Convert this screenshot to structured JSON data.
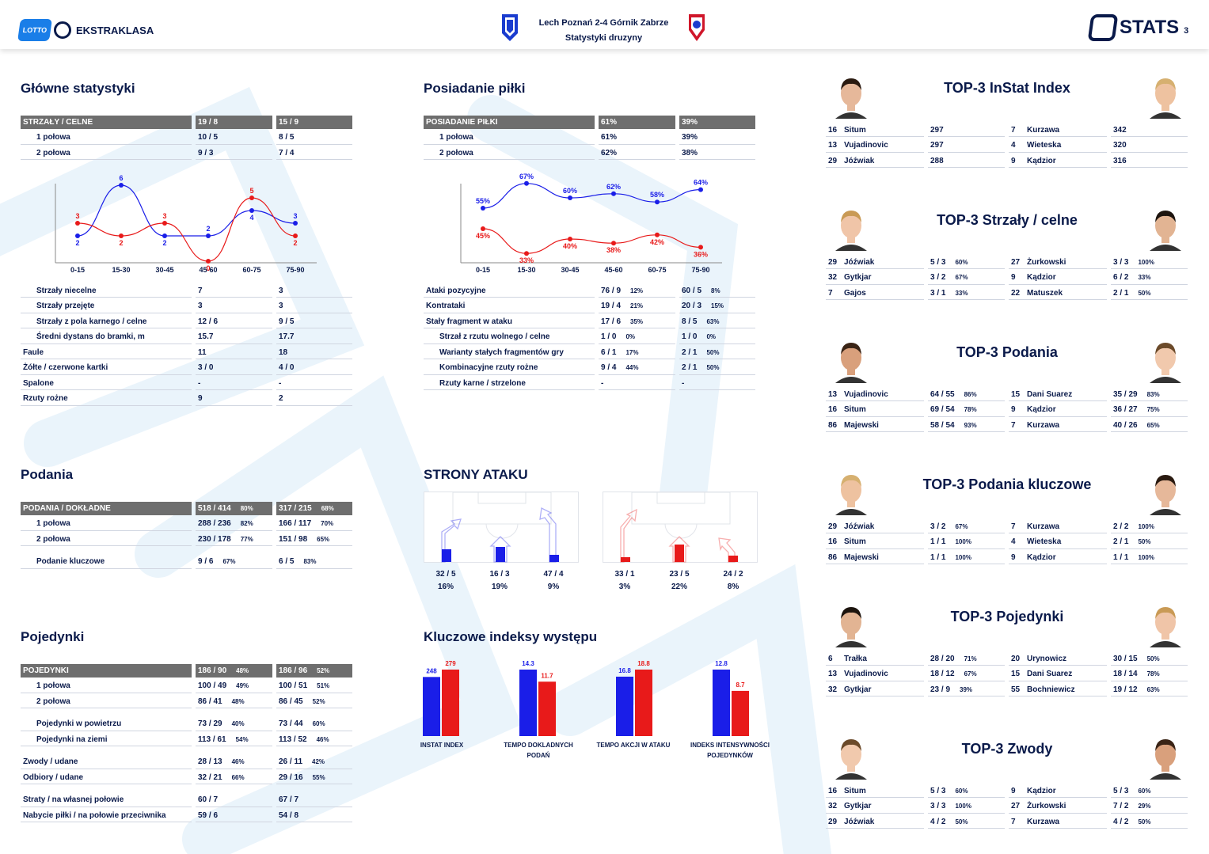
{
  "header": {
    "brand_league": "EKSTRAKLASA",
    "brand_lotto": "LOTTO",
    "match_line1": "Lech Poznań 2-4 Górnik Zabrze",
    "match_line2": "Statystyki druzyny",
    "stats_brand": "STATS",
    "page_no": "3"
  },
  "colors": {
    "home": "#1a1ee8",
    "away": "#e81a1a",
    "header_grey": "#6e6e6e",
    "navy": "#0a1a4a"
  },
  "main": {
    "title": "Główne statystyki",
    "header": [
      "STRZAŁY / CELNE",
      "19 / 8",
      "15 / 9"
    ],
    "halves": [
      [
        "1 połowa",
        "10 / 5",
        "8 / 5"
      ],
      [
        "2 połowa",
        "9 / 3",
        "7 / 4"
      ]
    ],
    "rows": [
      [
        "Strzały niecelne",
        "7",
        "3",
        true
      ],
      [
        "Strzały przejęte",
        "3",
        "3",
        true
      ],
      [
        "Strzały z pola karnego / celne",
        "12 / 6",
        "9 / 5",
        true
      ],
      [
        "Średni dystans do bramki, m",
        "15.7",
        "17.7",
        true
      ],
      [
        "Faule",
        "11",
        "18",
        false
      ],
      [
        "Żółte / czerwone kartki",
        "3 / 0",
        "4 / 0",
        false
      ],
      [
        "Spalone",
        "-",
        "-",
        false
      ],
      [
        "Rzuty rożne",
        "9",
        "2",
        false
      ]
    ]
  },
  "shots_chart": {
    "type": "line",
    "x": [
      "0-15",
      "15-30",
      "30-45",
      "45-60",
      "60-75",
      "75-90"
    ],
    "series": [
      {
        "values": [
          2,
          6,
          2,
          2,
          4,
          3
        ]
      },
      {
        "values": [
          3,
          2,
          3,
          0,
          5,
          2
        ]
      }
    ],
    "ylim": [
      0,
      6
    ]
  },
  "possession": {
    "title": "Posiadanie piłki",
    "header": [
      "POSIADANIE PIŁKI",
      "61%",
      "39%"
    ],
    "halves": [
      [
        "1 połowa",
        "61%",
        "39%"
      ],
      [
        "2 połowa",
        "62%",
        "38%"
      ]
    ],
    "rows": [
      [
        "Ataki pozycyjne",
        "76 / 9",
        "12%",
        "60 / 5",
        "8%",
        false
      ],
      [
        "Kontrataki",
        "19 / 4",
        "21%",
        "20 / 3",
        "15%",
        false
      ],
      [
        "Stały fragment w ataku",
        "17 / 6",
        "35%",
        "8 / 5",
        "63%",
        false
      ],
      [
        "Strzał z rzutu wolnego / celne",
        "1 / 0",
        "0%",
        "1 / 0",
        "0%",
        true
      ],
      [
        "Warianty stałych fragmentów gry",
        "6 / 1",
        "17%",
        "2 / 1",
        "50%",
        true
      ],
      [
        "Kombinacyjne rzuty rożne",
        "9 / 4",
        "44%",
        "2 / 1",
        "50%",
        true
      ],
      [
        "Rzuty karne / strzelone",
        "-",
        "",
        "-",
        "",
        true
      ]
    ]
  },
  "possession_chart": {
    "type": "line",
    "x": [
      "0-15",
      "15-30",
      "30-45",
      "45-60",
      "60-75",
      "75-90"
    ],
    "series": [
      {
        "values": [
          55,
          67,
          60,
          62,
          58,
          64
        ],
        "labels": [
          "55%",
          "67%",
          "60%",
          "62%",
          "58%",
          "64%"
        ]
      },
      {
        "values": [
          45,
          33,
          40,
          38,
          42,
          36
        ],
        "labels": [
          "45%",
          "33%",
          "40%",
          "38%",
          "42%",
          "36%"
        ]
      }
    ]
  },
  "passes": {
    "title": "Podania",
    "header": [
      "PODANIA / DOKŁADNE",
      "518 / 414",
      "80%",
      "317 / 215",
      "68%"
    ],
    "rows": [
      [
        "1 połowa",
        "288 / 236",
        "82%",
        "166 / 117",
        "70%",
        true
      ],
      [
        "2 połowa",
        "230 / 178",
        "77%",
        "151 / 98",
        "65%",
        true
      ]
    ],
    "key": [
      "Podanie kluczowe",
      "9 / 6",
      "67%",
      "6 / 5",
      "83%"
    ]
  },
  "attack_sides": {
    "title": "STRONY ATAKU",
    "home": [
      [
        "32 / 5",
        "16%"
      ],
      [
        "16 / 3",
        "19%"
      ],
      [
        "47 / 4",
        "9%"
      ]
    ],
    "away": [
      [
        "33 / 1",
        "3%"
      ],
      [
        "23 / 5",
        "22%"
      ],
      [
        "24 / 2",
        "8%"
      ]
    ]
  },
  "duels": {
    "title": "Pojedynki",
    "header": [
      "POJEDYNKI",
      "186 / 90",
      "48%",
      "186 / 96",
      "52%"
    ],
    "groups": [
      [
        [
          "1 połowa",
          "100 / 49",
          "49%",
          "100 / 51",
          "51%",
          true
        ],
        [
          "2 połowa",
          "86 / 41",
          "48%",
          "86 / 45",
          "52%",
          true
        ]
      ],
      [
        [
          "Pojedynki w powietrzu",
          "73 / 29",
          "40%",
          "73 / 44",
          "60%",
          true
        ],
        [
          "Pojedynki na ziemi",
          "113 / 61",
          "54%",
          "113 / 52",
          "46%",
          true
        ]
      ],
      [
        [
          "Zwody / udane",
          "28 / 13",
          "46%",
          "26 / 11",
          "42%",
          false
        ],
        [
          "Odbiory / udane",
          "32 / 21",
          "66%",
          "29 / 16",
          "55%",
          false
        ]
      ],
      [
        [
          "Straty / na własnej połowie",
          "60 / 7",
          "",
          "67 / 7",
          "",
          false
        ],
        [
          "Nabycie piłki / na połowie przeciwnika",
          "59 / 6",
          "",
          "54 / 8",
          "",
          false
        ]
      ]
    ]
  },
  "kpi": {
    "title": "Kluczowe indeksy występu",
    "chart_data": {
      "type": "bar",
      "categories": [
        "INSTAT INDEX",
        "TEMPO DOKLADNYCH PODAŃ",
        "TEMPO AKCJI W ATAKU",
        "INDEKS INTENSYWNOŚCI POJEDYNKÓW"
      ],
      "series": [
        {
          "values": [
            248,
            14.3,
            16.8,
            12.8
          ],
          "labels": [
            "248",
            "14.3",
            "16.8",
            "12.8"
          ]
        },
        {
          "values": [
            279,
            11.7,
            18.8,
            8.7
          ],
          "labels": [
            "279",
            "11.7",
            "18.8",
            "8.7"
          ]
        }
      ]
    },
    "labels": [
      [
        "INSTAT INDEX",
        ""
      ],
      [
        "TEMPO DOKLADNYCH",
        "PODAŃ"
      ],
      [
        "TEMPO AKCJI W ATAKU",
        ""
      ],
      [
        "INDEKS INTENSYWNOŚCI",
        "POJEDYNKÓW"
      ]
    ]
  },
  "tops": [
    {
      "title": "TOP-3 InStat Index",
      "rows": [
        [
          "16",
          "Situm",
          "297",
          "",
          "7",
          "Kurzawa",
          "342",
          ""
        ],
        [
          "13",
          "Vujadinovic",
          "297",
          "",
          "4",
          "Wieteska",
          "320",
          ""
        ],
        [
          "29",
          "Jóźwiak",
          "288",
          "",
          "9",
          "Kądzior",
          "316",
          ""
        ]
      ]
    },
    {
      "title": "TOP-3 Strzały / celne",
      "rows": [
        [
          "29",
          "Jóźwiak",
          "5 / 3",
          "60%",
          "27",
          "Żurkowski",
          "3 / 3",
          "100%"
        ],
        [
          "32",
          "Gytkjar",
          "3 / 2",
          "67%",
          "9",
          "Kądzior",
          "6 / 2",
          "33%"
        ],
        [
          "7",
          "Gajos",
          "3 / 1",
          "33%",
          "22",
          "Matuszek",
          "2 / 1",
          "50%"
        ]
      ]
    },
    {
      "title": "TOP-3 Podania",
      "rows": [
        [
          "13",
          "Vujadinovic",
          "64 / 55",
          "86%",
          "15",
          "Dani Suarez",
          "35 / 29",
          "83%"
        ],
        [
          "16",
          "Situm",
          "69 / 54",
          "78%",
          "9",
          "Kądzior",
          "36 / 27",
          "75%"
        ],
        [
          "86",
          "Majewski",
          "58 / 54",
          "93%",
          "7",
          "Kurzawa",
          "40 / 26",
          "65%"
        ]
      ]
    },
    {
      "title": "TOP-3 Podania kluczowe",
      "rows": [
        [
          "29",
          "Jóźwiak",
          "3 / 2",
          "67%",
          "7",
          "Kurzawa",
          "2 / 2",
          "100%"
        ],
        [
          "16",
          "Situm",
          "1 / 1",
          "100%",
          "4",
          "Wieteska",
          "2 / 1",
          "50%"
        ],
        [
          "86",
          "Majewski",
          "1 / 1",
          "100%",
          "9",
          "Kądzior",
          "1 / 1",
          "100%"
        ]
      ]
    },
    {
      "title": "TOP-3 Pojedynki",
      "rows": [
        [
          "6",
          "Trałka",
          "28 / 20",
          "71%",
          "20",
          "Urynowicz",
          "30 / 15",
          "50%"
        ],
        [
          "13",
          "Vujadinovic",
          "18 / 12",
          "67%",
          "15",
          "Dani Suarez",
          "18 / 14",
          "78%"
        ],
        [
          "32",
          "Gytkjar",
          "23 / 9",
          "39%",
          "55",
          "Bochniewicz",
          "19 / 12",
          "63%"
        ]
      ]
    },
    {
      "title": "TOP-3 Zwody",
      "rows": [
        [
          "16",
          "Situm",
          "5 / 3",
          "60%",
          "9",
          "Kądzior",
          "5 / 3",
          "60%"
        ],
        [
          "32",
          "Gytkjar",
          "3 / 3",
          "100%",
          "27",
          "Żurkowski",
          "7 / 2",
          "29%"
        ],
        [
          "29",
          "Jóźwiak",
          "4 / 2",
          "50%",
          "7",
          "Kurzawa",
          "4 / 2",
          "50%"
        ]
      ]
    }
  ]
}
